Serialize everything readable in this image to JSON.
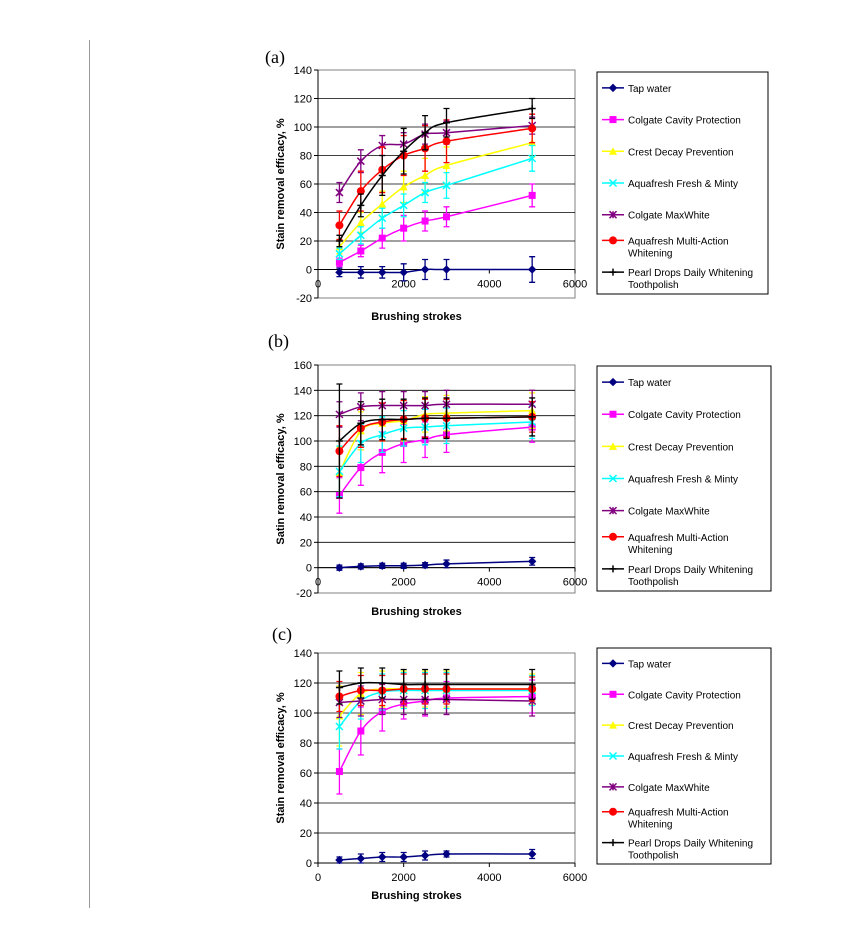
{
  "chart_data": [
    {
      "panel": "(a)",
      "type": "line",
      "xlabel": "Brushing strokes",
      "ylabel": "Stain removal efficacy, %",
      "xlim": [
        0,
        6000
      ],
      "ylim": [
        -20,
        140
      ],
      "xticks": [
        0,
        2000,
        4000,
        6000
      ],
      "ystep": 20,
      "grid": "horizontal",
      "legend": "right",
      "smooth": true,
      "x": [
        500,
        1000,
        1500,
        2000,
        2500,
        3000,
        5000
      ],
      "series": [
        {
          "name": "Tap water",
          "color": "#000080",
          "marker": "diamond",
          "values": [
            -2,
            -2,
            -2,
            -2,
            0,
            0,
            0
          ],
          "error": [
            3,
            4,
            4,
            6,
            7,
            7,
            9
          ]
        },
        {
          "name": "Colgate Cavity Protection",
          "color": "#ff00ff",
          "marker": "square",
          "values": [
            5,
            13,
            22,
            29,
            34,
            37,
            52
          ],
          "error": [
            3,
            4,
            7,
            9,
            7,
            7,
            8
          ]
        },
        {
          "name": "Crest Decay Prevention",
          "color": "#ffff00",
          "marker": "triangle",
          "values": [
            16,
            33,
            46,
            58,
            66,
            73,
            89
          ],
          "error": [
            5,
            7,
            9,
            11,
            12,
            13,
            10
          ]
        },
        {
          "name": "Aquafresh Fresh & Minty",
          "color": "#00ffff",
          "marker": "x",
          "values": [
            11,
            24,
            36,
            45,
            54,
            59,
            78
          ],
          "error": [
            4,
            6,
            7,
            8,
            7,
            9,
            9
          ]
        },
        {
          "name": "Colgate MaxWhite",
          "color": "#800080",
          "marker": "star",
          "values": [
            54,
            76,
            87,
            88,
            95,
            96,
            101
          ],
          "error": [
            7,
            8,
            7,
            8,
            7,
            8,
            6
          ]
        },
        {
          "name": "Aquafresh Multi-Action Whitening",
          "color": "#ff0000",
          "marker": "circle",
          "values": [
            31,
            55,
            70,
            80,
            85,
            90,
            99
          ],
          "error": [
            10,
            14,
            16,
            14,
            16,
            15,
            10
          ]
        },
        {
          "name": "Pearl Drops Daily Whitening Toothpolish",
          "color": "#000000",
          "marker": "plus",
          "values": [
            20,
            45,
            66,
            83,
            96,
            103,
            113
          ],
          "error": [
            4,
            8,
            14,
            16,
            12,
            10,
            7
          ]
        }
      ]
    },
    {
      "panel": "(b)",
      "type": "line",
      "xlabel": "Brushing strokes",
      "ylabel": "Satin removal efficacy, %",
      "xlim": [
        0,
        6000
      ],
      "ylim": [
        -20,
        160
      ],
      "xticks": [
        0,
        2000,
        4000,
        6000
      ],
      "ystep": 20,
      "grid": "horizontal",
      "legend": "right",
      "smooth": true,
      "x": [
        500,
        1000,
        1500,
        2000,
        2500,
        3000,
        5000
      ],
      "series": [
        {
          "name": "Tap water",
          "color": "#000080",
          "marker": "diamond",
          "values": [
            0,
            1,
            1.5,
            1.5,
            2,
            3,
            5
          ],
          "error": [
            2,
            2,
            2,
            2,
            2,
            3,
            3
          ]
        },
        {
          "name": "Colgate Cavity Protection",
          "color": "#ff00ff",
          "marker": "square",
          "values": [
            57,
            79,
            91,
            98,
            101,
            105,
            111
          ],
          "error": [
            14,
            14,
            16,
            15,
            14,
            14,
            12
          ]
        },
        {
          "name": "Crest Decay Prevention",
          "color": "#ffff00",
          "marker": "triangle",
          "values": [
            75,
            108,
            114,
            116,
            121,
            122,
            124
          ],
          "error": [
            20,
            15,
            14,
            16,
            14,
            14,
            14
          ]
        },
        {
          "name": "Aquafresh Fresh & Minty",
          "color": "#00ffff",
          "marker": "x",
          "values": [
            76,
            98,
            105,
            110,
            111,
            112,
            115
          ],
          "error": [
            20,
            15,
            14,
            14,
            14,
            14,
            13
          ]
        },
        {
          "name": "Colgate MaxWhite",
          "color": "#800080",
          "marker": "star",
          "values": [
            121,
            127,
            128,
            128,
            128,
            129,
            129
          ],
          "error": [
            10,
            11,
            11,
            11,
            11,
            11,
            11
          ]
        },
        {
          "name": "Aquafresh Multi-Action Whitening",
          "color": "#ff0000",
          "marker": "circle",
          "values": [
            92,
            110,
            115,
            117,
            118,
            118,
            119
          ],
          "error": [
            20,
            15,
            15,
            15,
            15,
            15,
            12
          ]
        },
        {
          "name": "Pearl Drops Daily Whitening Toothpolish",
          "color": "#000000",
          "marker": "plus",
          "values": [
            100,
            114,
            117,
            117,
            118,
            118,
            119
          ],
          "error": [
            45,
            17,
            16,
            16,
            16,
            16,
            15
          ]
        }
      ]
    },
    {
      "panel": "(c)",
      "type": "line",
      "xlabel": "Brushing strokes",
      "ylabel": "Stain removal efficacy, %",
      "xlim": [
        0,
        6000
      ],
      "ylim": [
        0,
        140
      ],
      "xticks": [
        0,
        2000,
        4000,
        6000
      ],
      "ystep": 20,
      "grid": "horizontal",
      "legend": "right",
      "smooth": true,
      "x": [
        500,
        1000,
        1500,
        2000,
        2500,
        3000,
        5000
      ],
      "series": [
        {
          "name": "Tap water",
          "color": "#000080",
          "marker": "diamond",
          "values": [
            2,
            3,
            4,
            4,
            5,
            6,
            6
          ],
          "error": [
            2,
            3,
            3,
            3,
            3,
            2,
            3
          ]
        },
        {
          "name": "Colgate Cavity Protection",
          "color": "#ff00ff",
          "marker": "square",
          "values": [
            61,
            88,
            101,
            106,
            108,
            110,
            111
          ],
          "error": [
            15,
            16,
            13,
            10,
            10,
            11,
            11
          ]
        },
        {
          "name": "Crest Decay Prevention",
          "color": "#ffff00",
          "marker": "triangle",
          "values": [
            98,
            113,
            116,
            116,
            116,
            116,
            116
          ],
          "error": [
            20,
            14,
            12,
            12,
            12,
            12,
            10
          ]
        },
        {
          "name": "Aquafresh Fresh & Minty",
          "color": "#00ffff",
          "marker": "x",
          "values": [
            91,
            108,
            114,
            115,
            115,
            115,
            115
          ],
          "error": [
            15,
            12,
            12,
            12,
            12,
            12,
            10
          ]
        },
        {
          "name": "Colgate MaxWhite",
          "color": "#800080",
          "marker": "star",
          "values": [
            107,
            108,
            109,
            109,
            109,
            109,
            108
          ],
          "error": [
            10,
            10,
            10,
            10,
            10,
            10,
            10
          ]
        },
        {
          "name": "Aquafresh Multi-Action Whitening",
          "color": "#ff0000",
          "marker": "circle",
          "values": [
            111,
            115,
            115,
            116,
            116,
            116,
            116
          ],
          "error": [
            10,
            10,
            10,
            10,
            10,
            10,
            8
          ]
        },
        {
          "name": "Pearl Drops Daily Whitening Toothpolish",
          "color": "#000000",
          "marker": "plus",
          "values": [
            117,
            120,
            120,
            119,
            119,
            119,
            119
          ],
          "error": [
            11,
            10,
            10,
            10,
            10,
            10,
            10
          ]
        }
      ]
    }
  ]
}
